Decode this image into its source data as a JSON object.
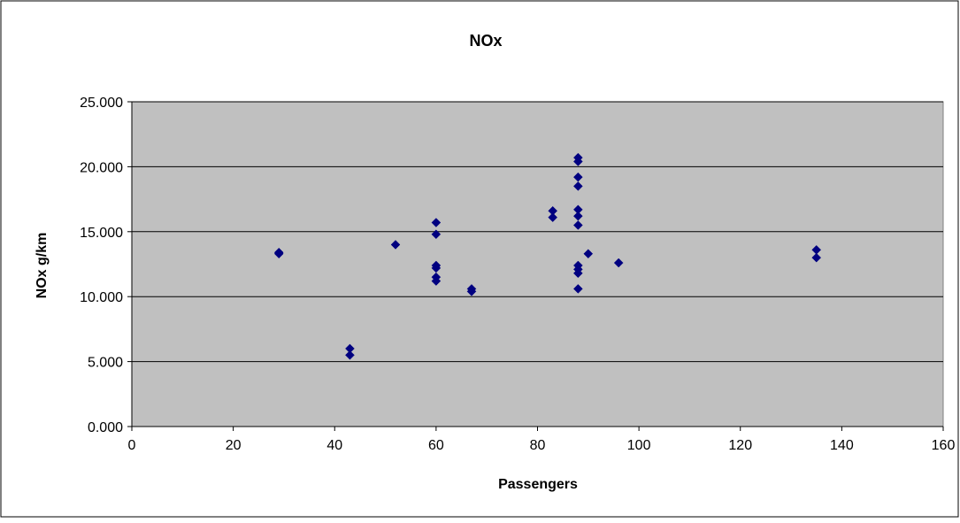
{
  "chart_data": {
    "type": "scatter",
    "title": "NOx",
    "xlabel": "Passengers",
    "ylabel": "NOx g/km",
    "xlim": [
      0,
      160
    ],
    "ylim": [
      0,
      25
    ],
    "xticks": [
      0,
      20,
      40,
      60,
      80,
      100,
      120,
      140,
      160
    ],
    "yticks": [
      0,
      5,
      10,
      15,
      20,
      25
    ],
    "xtick_labels": [
      "0",
      "20",
      "40",
      "60",
      "80",
      "100",
      "120",
      "140",
      "160"
    ],
    "ytick_labels": [
      "0.000",
      "5.000",
      "10.000",
      "15.000",
      "20.000",
      "25.000"
    ],
    "grid": "horizontal",
    "legend": "none",
    "colors": {
      "plot_background": "#c0c0c0",
      "marker": "#000080",
      "gridline": "#000000"
    },
    "series": [
      {
        "marker": "diamond",
        "points": [
          {
            "x": 29,
            "y": 13.3
          },
          {
            "x": 29,
            "y": 13.4
          },
          {
            "x": 43,
            "y": 6.0
          },
          {
            "x": 43,
            "y": 5.5
          },
          {
            "x": 52,
            "y": 14.0
          },
          {
            "x": 60,
            "y": 15.7
          },
          {
            "x": 60,
            "y": 14.8
          },
          {
            "x": 60,
            "y": 12.4
          },
          {
            "x": 60,
            "y": 12.2
          },
          {
            "x": 60,
            "y": 11.5
          },
          {
            "x": 60,
            "y": 11.2
          },
          {
            "x": 67,
            "y": 10.6
          },
          {
            "x": 67,
            "y": 10.4
          },
          {
            "x": 83,
            "y": 16.6
          },
          {
            "x": 83,
            "y": 16.1
          },
          {
            "x": 88,
            "y": 20.7
          },
          {
            "x": 88,
            "y": 20.4
          },
          {
            "x": 88,
            "y": 19.2
          },
          {
            "x": 88,
            "y": 18.5
          },
          {
            "x": 88,
            "y": 16.7
          },
          {
            "x": 88,
            "y": 16.2
          },
          {
            "x": 88,
            "y": 15.5
          },
          {
            "x": 88,
            "y": 12.4
          },
          {
            "x": 88,
            "y": 12.1
          },
          {
            "x": 88,
            "y": 11.8
          },
          {
            "x": 88,
            "y": 10.6
          },
          {
            "x": 90,
            "y": 13.3
          },
          {
            "x": 96,
            "y": 12.6
          },
          {
            "x": 135,
            "y": 13.6
          },
          {
            "x": 135,
            "y": 13.0
          }
        ]
      }
    ]
  }
}
